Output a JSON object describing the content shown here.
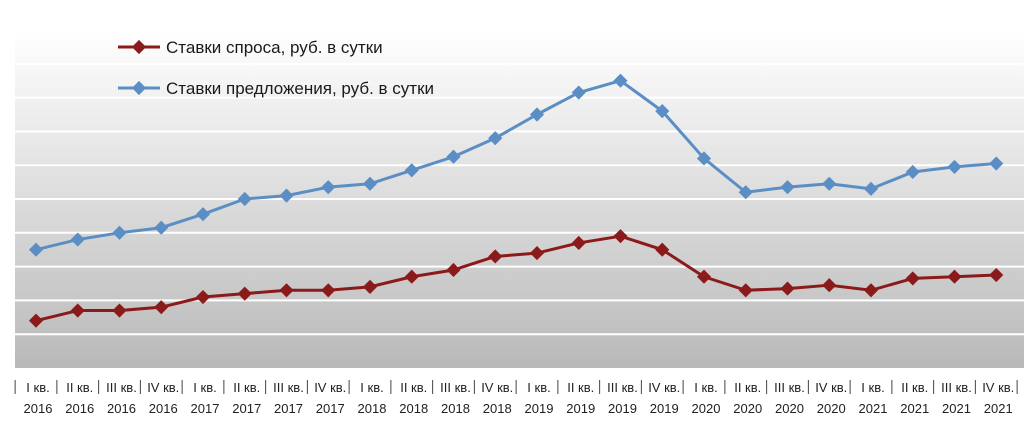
{
  "chart_data": {
    "type": "line",
    "title": "",
    "xlabel": "",
    "ylabel": "",
    "ylim": [
      0,
      100
    ],
    "grid": true,
    "legend_position": "top-left",
    "x_labels": [
      [
        "I кв.",
        "2016"
      ],
      [
        "II кв.",
        "2016"
      ],
      [
        "III кв.",
        "2016"
      ],
      [
        "IV кв.",
        "2016"
      ],
      [
        "I кв.",
        "2017"
      ],
      [
        "II кв.",
        "2017"
      ],
      [
        "III кв.",
        "2017"
      ],
      [
        "IV кв.",
        "2017"
      ],
      [
        "I кв.",
        "2018"
      ],
      [
        "II кв.",
        "2018"
      ],
      [
        "III кв.",
        "2018"
      ],
      [
        "IV кв.",
        "2018"
      ],
      [
        "I кв.",
        "2019"
      ],
      [
        "II кв.",
        "2019"
      ],
      [
        "III кв.",
        "2019"
      ],
      [
        "IV кв.",
        "2019"
      ],
      [
        "I кв.",
        "2020"
      ],
      [
        "II кв.",
        "2020"
      ],
      [
        "III кв.",
        "2020"
      ],
      [
        "IV кв.",
        "2020"
      ],
      [
        "I кв.",
        "2021"
      ],
      [
        "II кв.",
        "2021"
      ],
      [
        "III кв.",
        "2021"
      ],
      [
        "IV кв.",
        "2021"
      ]
    ],
    "series": [
      {
        "name": "Ставки спроса, руб. в сутки",
        "color": "#8b1a1a",
        "values": [
          14,
          17,
          17,
          18,
          21,
          22,
          23,
          23,
          24,
          27,
          29,
          33,
          34,
          37,
          39,
          35,
          27,
          23,
          23.5,
          24.5,
          23,
          26.5,
          27,
          27.5
        ]
      },
      {
        "name": "Ставки предложения, руб. в сутки",
        "color": "#5b8ec4",
        "values": [
          35,
          38,
          40,
          41.5,
          45.5,
          50,
          51,
          53.5,
          54.5,
          58.5,
          62.5,
          68,
          75,
          81.5,
          85,
          76,
          62,
          52,
          53.5,
          54.5,
          53,
          58,
          59.5,
          60.5
        ]
      }
    ]
  }
}
